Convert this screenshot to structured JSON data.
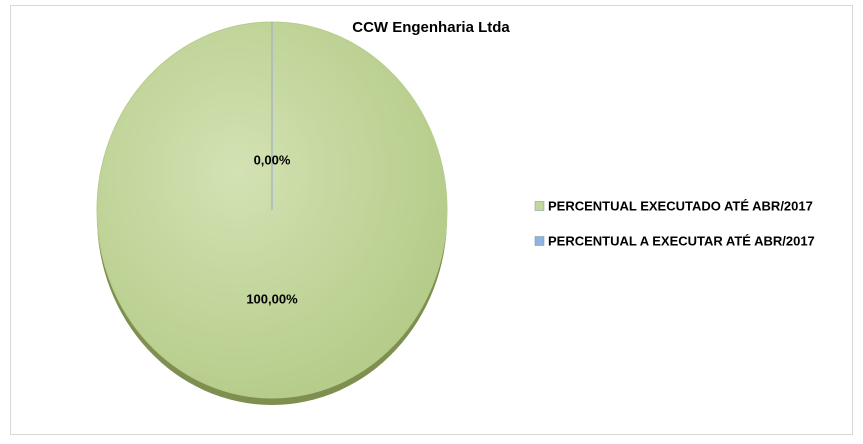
{
  "chart_data": {
    "type": "pie",
    "title": "CCW Engenharia Ltda",
    "categories": [
      "PERCENTUAL EXECUTADO ATÉ ABR/2017",
      "PERCENTUAL A EXECUTAR ATÉ ABR/2017"
    ],
    "values": [
      100,
      0
    ],
    "value_labels": [
      "100,00%",
      "0,00%"
    ],
    "colors": [
      "#c4d79b",
      "#8db4e2"
    ],
    "legend": "right"
  }
}
